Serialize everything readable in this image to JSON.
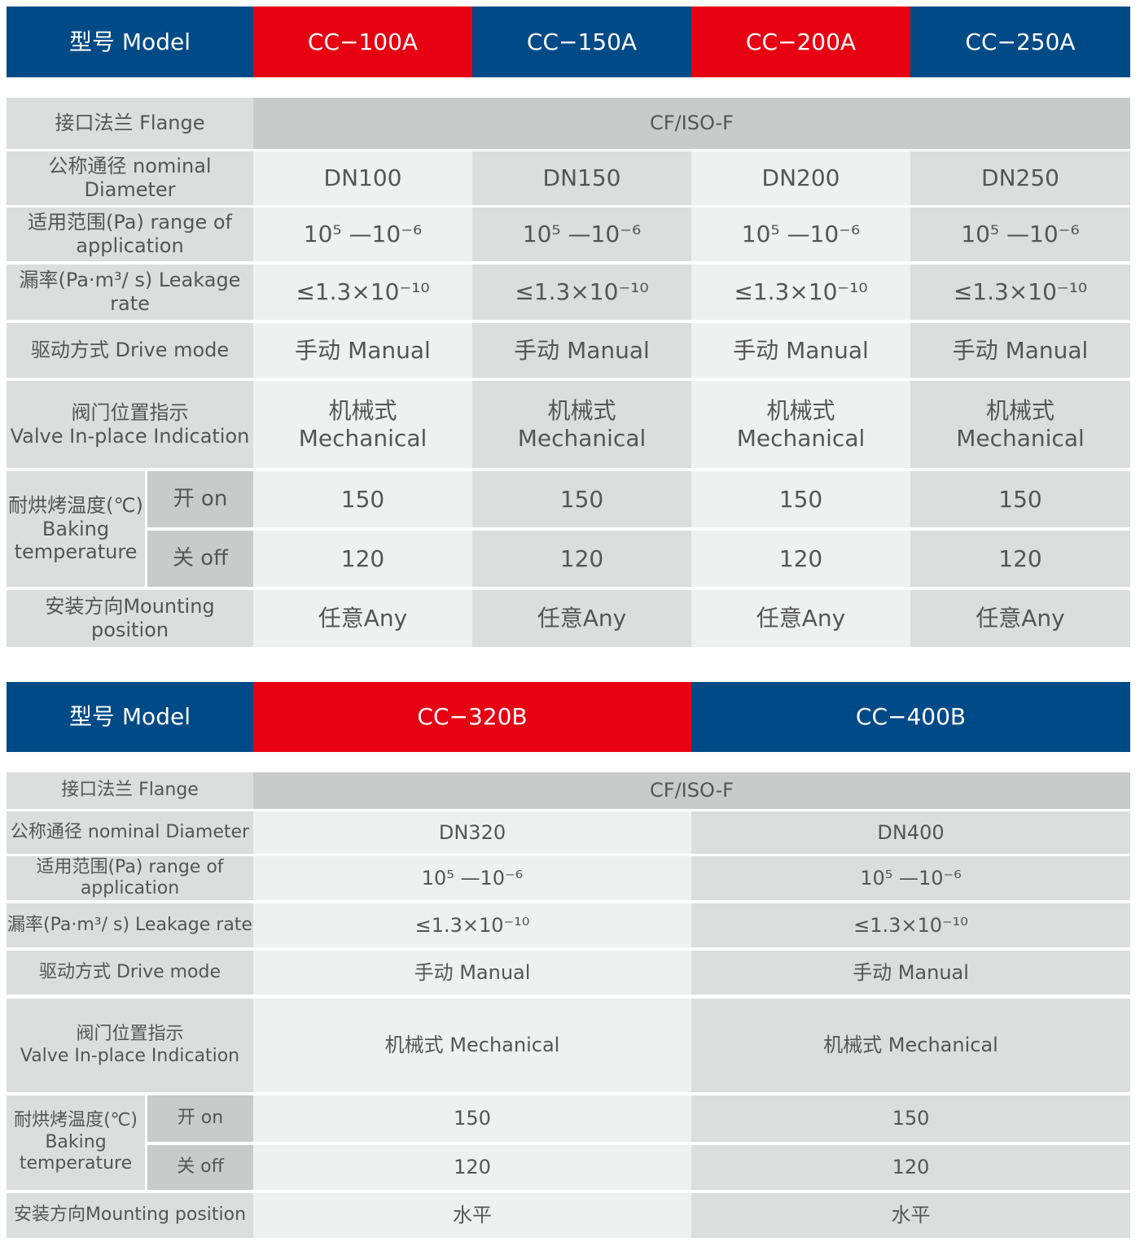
{
  "colors": {
    "blue": "#004a87",
    "red": "#e60012"
  },
  "table1": {
    "model_label": "型号 Model",
    "models": [
      "CC−100A",
      "CC−150A",
      "CC−200A",
      "CC−250A"
    ],
    "flange": {
      "label": "接口法兰 Flange",
      "value": "CF/ISO-F"
    },
    "diameter": {
      "label": "公称通径 nominal Diameter",
      "values": [
        "DN100",
        "DN150",
        "DN200",
        "DN250"
      ]
    },
    "range": {
      "label": "适用范围(Pa) range of application",
      "values": [
        "10⁵ —10⁻⁶",
        "10⁵ —10⁻⁶",
        "10⁵ —10⁻⁶",
        "10⁵ —10⁻⁶"
      ]
    },
    "leakage": {
      "label": "漏率(Pa·m³/ s) Leakage rate",
      "values": [
        "≤1.3×10⁻¹⁰",
        "≤1.3×10⁻¹⁰",
        "≤1.3×10⁻¹⁰",
        "≤1.3×10⁻¹⁰"
      ]
    },
    "drive": {
      "label": "驱动方式 Drive mode",
      "values": [
        "手动 Manual",
        "手动 Manual",
        "手动 Manual",
        "手动 Manual"
      ]
    },
    "valve": {
      "label": "阀门位置指示\nValve In-place Indication",
      "values": [
        "机械式\nMechanical",
        "机械式\nMechanical",
        "机械式\nMechanical",
        "机械式\nMechanical"
      ]
    },
    "baking": {
      "label": "耐烘烤温度(℃)\nBaking\ntemperature",
      "on_label": "开 on",
      "off_label": "关 off",
      "on": [
        "150",
        "150",
        "150",
        "150"
      ],
      "off": [
        "120",
        "120",
        "120",
        "120"
      ]
    },
    "mounting": {
      "label": "安装方向Mounting position",
      "values": [
        "任意Any",
        "任意Any",
        "任意Any",
        "任意Any"
      ]
    }
  },
  "table2": {
    "model_label": "型号 Model",
    "models": [
      "CC−320B",
      "CC−400B"
    ],
    "flange": {
      "label": "接口法兰 Flange",
      "value": "CF/ISO-F"
    },
    "diameter": {
      "label": "公称通径 nominal Diameter",
      "values": [
        "DN320",
        "DN400"
      ]
    },
    "range": {
      "label": "适用范围(Pa) range of application",
      "values": [
        "10⁵ —10⁻⁶",
        "10⁵ —10⁻⁶"
      ]
    },
    "leakage": {
      "label": "漏率(Pa·m³/ s) Leakage rate",
      "values": [
        "≤1.3×10⁻¹⁰",
        "≤1.3×10⁻¹⁰"
      ]
    },
    "drive": {
      "label": "驱动方式 Drive mode",
      "values": [
        "手动 Manual",
        "手动 Manual"
      ]
    },
    "valve": {
      "label": "阀门位置指示\nValve In-place Indication",
      "values": [
        "机械式 Mechanical",
        "机械式 Mechanical"
      ]
    },
    "baking": {
      "label": "耐烘烤温度(℃)\nBaking\ntemperature",
      "on_label": "开 on",
      "off_label": "关 off",
      "on": [
        "150",
        "150"
      ],
      "off": [
        "120",
        "120"
      ]
    },
    "mounting": {
      "label": "安装方向Mounting position",
      "values": [
        "水平",
        "水平"
      ]
    }
  }
}
